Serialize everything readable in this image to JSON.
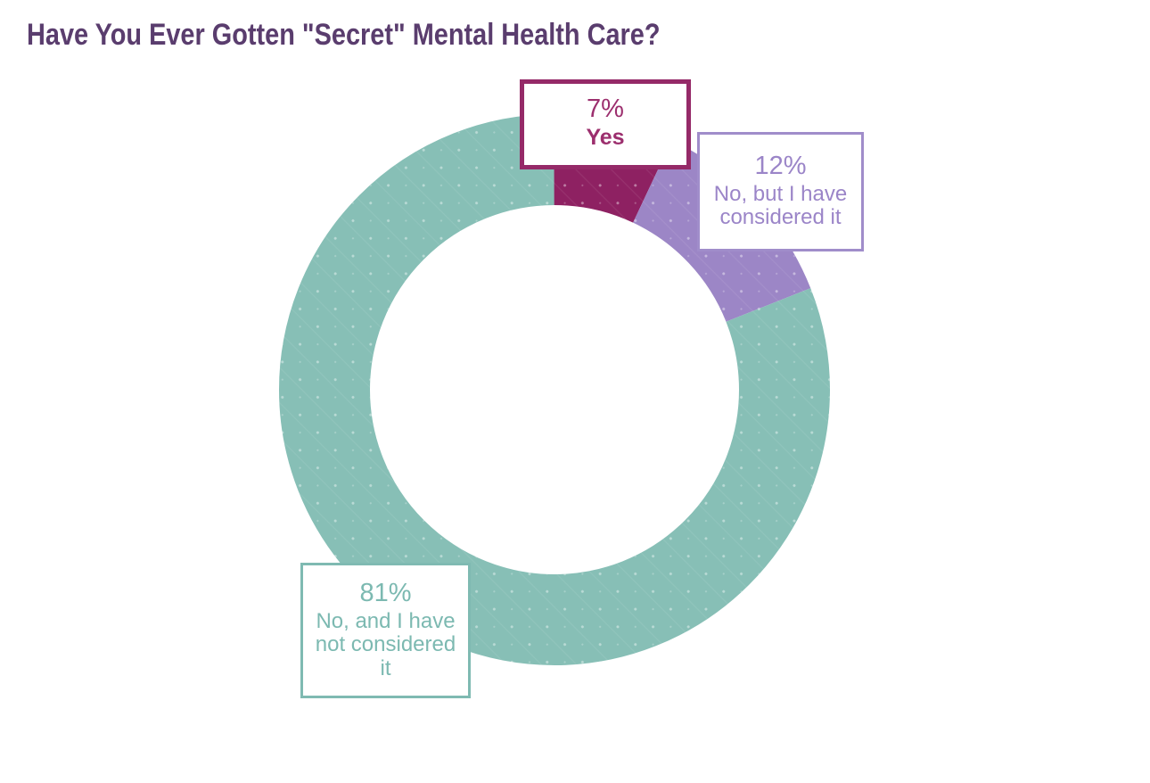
{
  "title": {
    "text": "Have You Ever Gotten \"Secret\" Mental Health Care?",
    "color": "#5a3d6e"
  },
  "chart_data": {
    "type": "pie",
    "subtype": "donut",
    "title": "Have You Ever Gotten \"Secret\" Mental Health Care?",
    "start_angle_deg": 0,
    "direction": "clockwise",
    "total": 100,
    "hole": "white",
    "texture": "subtle diagonal dots and hatch lines over slices",
    "slices": [
      {
        "id": "yes",
        "label": "Yes",
        "value": 7,
        "pct_label": "7%",
        "color": "#8e2162",
        "callout_border": "#952a68",
        "text_color": "#9c2f6e"
      },
      {
        "id": "no-considered",
        "label": "No, but I have considered it",
        "value": 12,
        "pct_label": "12%",
        "color": "#9c86c6",
        "callout_border": "#a08dca",
        "text_color": "#9b85c8"
      },
      {
        "id": "no-not-considered",
        "label": "No, and I have not considered it",
        "value": 81,
        "pct_label": "81%",
        "color": "#87bfb6",
        "callout_border": "#7fbab2",
        "text_color": "#7cb9b1"
      }
    ]
  }
}
